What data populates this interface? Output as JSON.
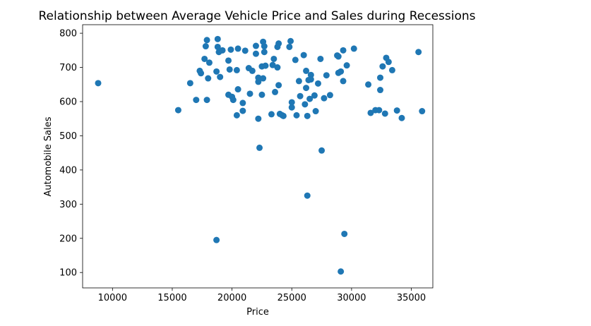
{
  "chart_data": {
    "type": "scatter",
    "title": "Relationship between Average Vehicle Price and Sales during Recessions",
    "xlabel": "Price",
    "ylabel": "Automobile Sales",
    "xlim": [
      7500,
      36800
    ],
    "ylim": [
      55,
      825
    ],
    "xticks": [
      10000,
      15000,
      20000,
      25000,
      30000,
      35000
    ],
    "yticks": [
      100,
      200,
      300,
      400,
      500,
      600,
      700,
      800
    ],
    "grid": false,
    "marker_color": "#1f77b4",
    "points": [
      [
        8800,
        654
      ],
      [
        15500,
        575
      ],
      [
        16500,
        654
      ],
      [
        17000,
        605
      ],
      [
        17300,
        690
      ],
      [
        17400,
        683
      ],
      [
        17700,
        725
      ],
      [
        17800,
        762
      ],
      [
        17900,
        780
      ],
      [
        17900,
        605
      ],
      [
        18000,
        668
      ],
      [
        18100,
        714
      ],
      [
        18700,
        688
      ],
      [
        18700,
        195
      ],
      [
        18800,
        783
      ],
      [
        18800,
        760
      ],
      [
        18900,
        745
      ],
      [
        19000,
        672
      ],
      [
        19200,
        750
      ],
      [
        19700,
        620
      ],
      [
        19700,
        720
      ],
      [
        19800,
        694
      ],
      [
        19900,
        752
      ],
      [
        20000,
        614
      ],
      [
        20100,
        605
      ],
      [
        20400,
        692
      ],
      [
        20400,
        560
      ],
      [
        20500,
        755
      ],
      [
        20500,
        636
      ],
      [
        20900,
        596
      ],
      [
        20900,
        573
      ],
      [
        21100,
        749
      ],
      [
        21400,
        698
      ],
      [
        21500,
        623
      ],
      [
        21700,
        690
      ],
      [
        22000,
        763
      ],
      [
        22000,
        740
      ],
      [
        22200,
        658
      ],
      [
        22200,
        670
      ],
      [
        22200,
        550
      ],
      [
        22300,
        465
      ],
      [
        22500,
        703
      ],
      [
        22500,
        620
      ],
      [
        22600,
        668
      ],
      [
        22600,
        775
      ],
      [
        22700,
        745
      ],
      [
        22700,
        762
      ],
      [
        22800,
        705
      ],
      [
        23300,
        563
      ],
      [
        23400,
        707
      ],
      [
        23500,
        725
      ],
      [
        23600,
        628
      ],
      [
        23800,
        700
      ],
      [
        23800,
        760
      ],
      [
        23900,
        770
      ],
      [
        23900,
        648
      ],
      [
        24000,
        564
      ],
      [
        24200,
        560
      ],
      [
        24300,
        558
      ],
      [
        24800,
        760
      ],
      [
        24900,
        777
      ],
      [
        25000,
        598
      ],
      [
        25000,
        583
      ],
      [
        25300,
        722
      ],
      [
        25400,
        560
      ],
      [
        25600,
        660
      ],
      [
        25700,
        616
      ],
      [
        26000,
        736
      ],
      [
        26100,
        592
      ],
      [
        26200,
        690
      ],
      [
        26200,
        640
      ],
      [
        26300,
        558
      ],
      [
        26300,
        325
      ],
      [
        26400,
        663
      ],
      [
        26500,
        608
      ],
      [
        26600,
        678
      ],
      [
        26600,
        665
      ],
      [
        26900,
        618
      ],
      [
        27000,
        572
      ],
      [
        27200,
        653
      ],
      [
        27400,
        725
      ],
      [
        27500,
        457
      ],
      [
        27700,
        610
      ],
      [
        27900,
        677
      ],
      [
        28200,
        619
      ],
      [
        28800,
        735
      ],
      [
        28900,
        684
      ],
      [
        28900,
        732
      ],
      [
        29100,
        103
      ],
      [
        29100,
        688
      ],
      [
        29300,
        660
      ],
      [
        29300,
        750
      ],
      [
        29400,
        213
      ],
      [
        29600,
        706
      ],
      [
        30200,
        755
      ],
      [
        31400,
        650
      ],
      [
        31600,
        567
      ],
      [
        32000,
        575
      ],
      [
        32300,
        575
      ],
      [
        32400,
        634
      ],
      [
        32400,
        670
      ],
      [
        32600,
        703
      ],
      [
        32800,
        565
      ],
      [
        32900,
        728
      ],
      [
        33100,
        716
      ],
      [
        33400,
        692
      ],
      [
        33800,
        574
      ],
      [
        34200,
        552
      ],
      [
        35600,
        745
      ],
      [
        35900,
        572
      ]
    ]
  }
}
